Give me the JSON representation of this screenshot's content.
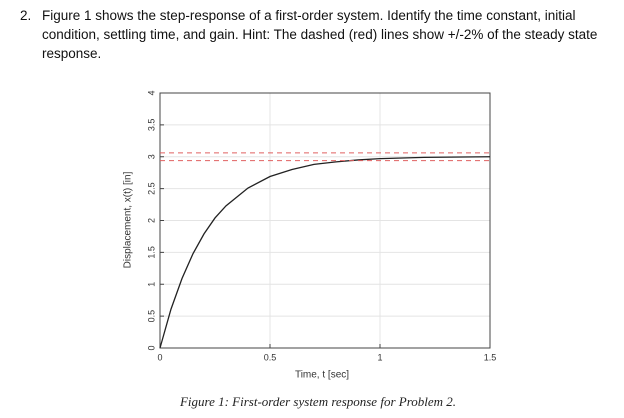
{
  "question": {
    "number": "2.",
    "text": "Figure 1 shows the step-response of a first-order system. Identify the time constant, initial condition, settling time, and gain. Hint: The dashed (red) lines show +/-2% of the steady state response."
  },
  "figure": {
    "chart_data": {
      "type": "line",
      "xlabel": "Time, t [sec]",
      "ylabel": "Displacement, x(t) [in]",
      "xlim": [
        0,
        1.5
      ],
      "ylim": [
        0,
        4
      ],
      "xticks": [
        0,
        0.5,
        1,
        1.5
      ],
      "yticks": [
        0,
        0.5,
        1,
        1.5,
        2,
        2.5,
        3,
        3.5,
        4
      ],
      "grid": true,
      "series": [
        {
          "color": "#222222",
          "style": "solid",
          "x": [
            0,
            0.05,
            0.1,
            0.15,
            0.2,
            0.25,
            0.3,
            0.4,
            0.5,
            0.6,
            0.7,
            0.8,
            0.9,
            1.0,
            1.2,
            1.5
          ],
          "values": [
            0,
            0.61,
            1.09,
            1.48,
            1.79,
            2.04,
            2.23,
            2.51,
            2.69,
            2.8,
            2.88,
            2.92,
            2.95,
            2.97,
            2.99,
            3.0
          ]
        },
        {
          "color": "#e06060",
          "style": "dashed",
          "x": [
            0,
            1.5
          ],
          "values": [
            3.06,
            3.06
          ]
        },
        {
          "color": "#e06060",
          "style": "dashed",
          "x": [
            0,
            1.5
          ],
          "values": [
            2.94,
            2.94
          ]
        }
      ]
    },
    "caption": "Figure 1: First-order system response for Problem 2."
  }
}
